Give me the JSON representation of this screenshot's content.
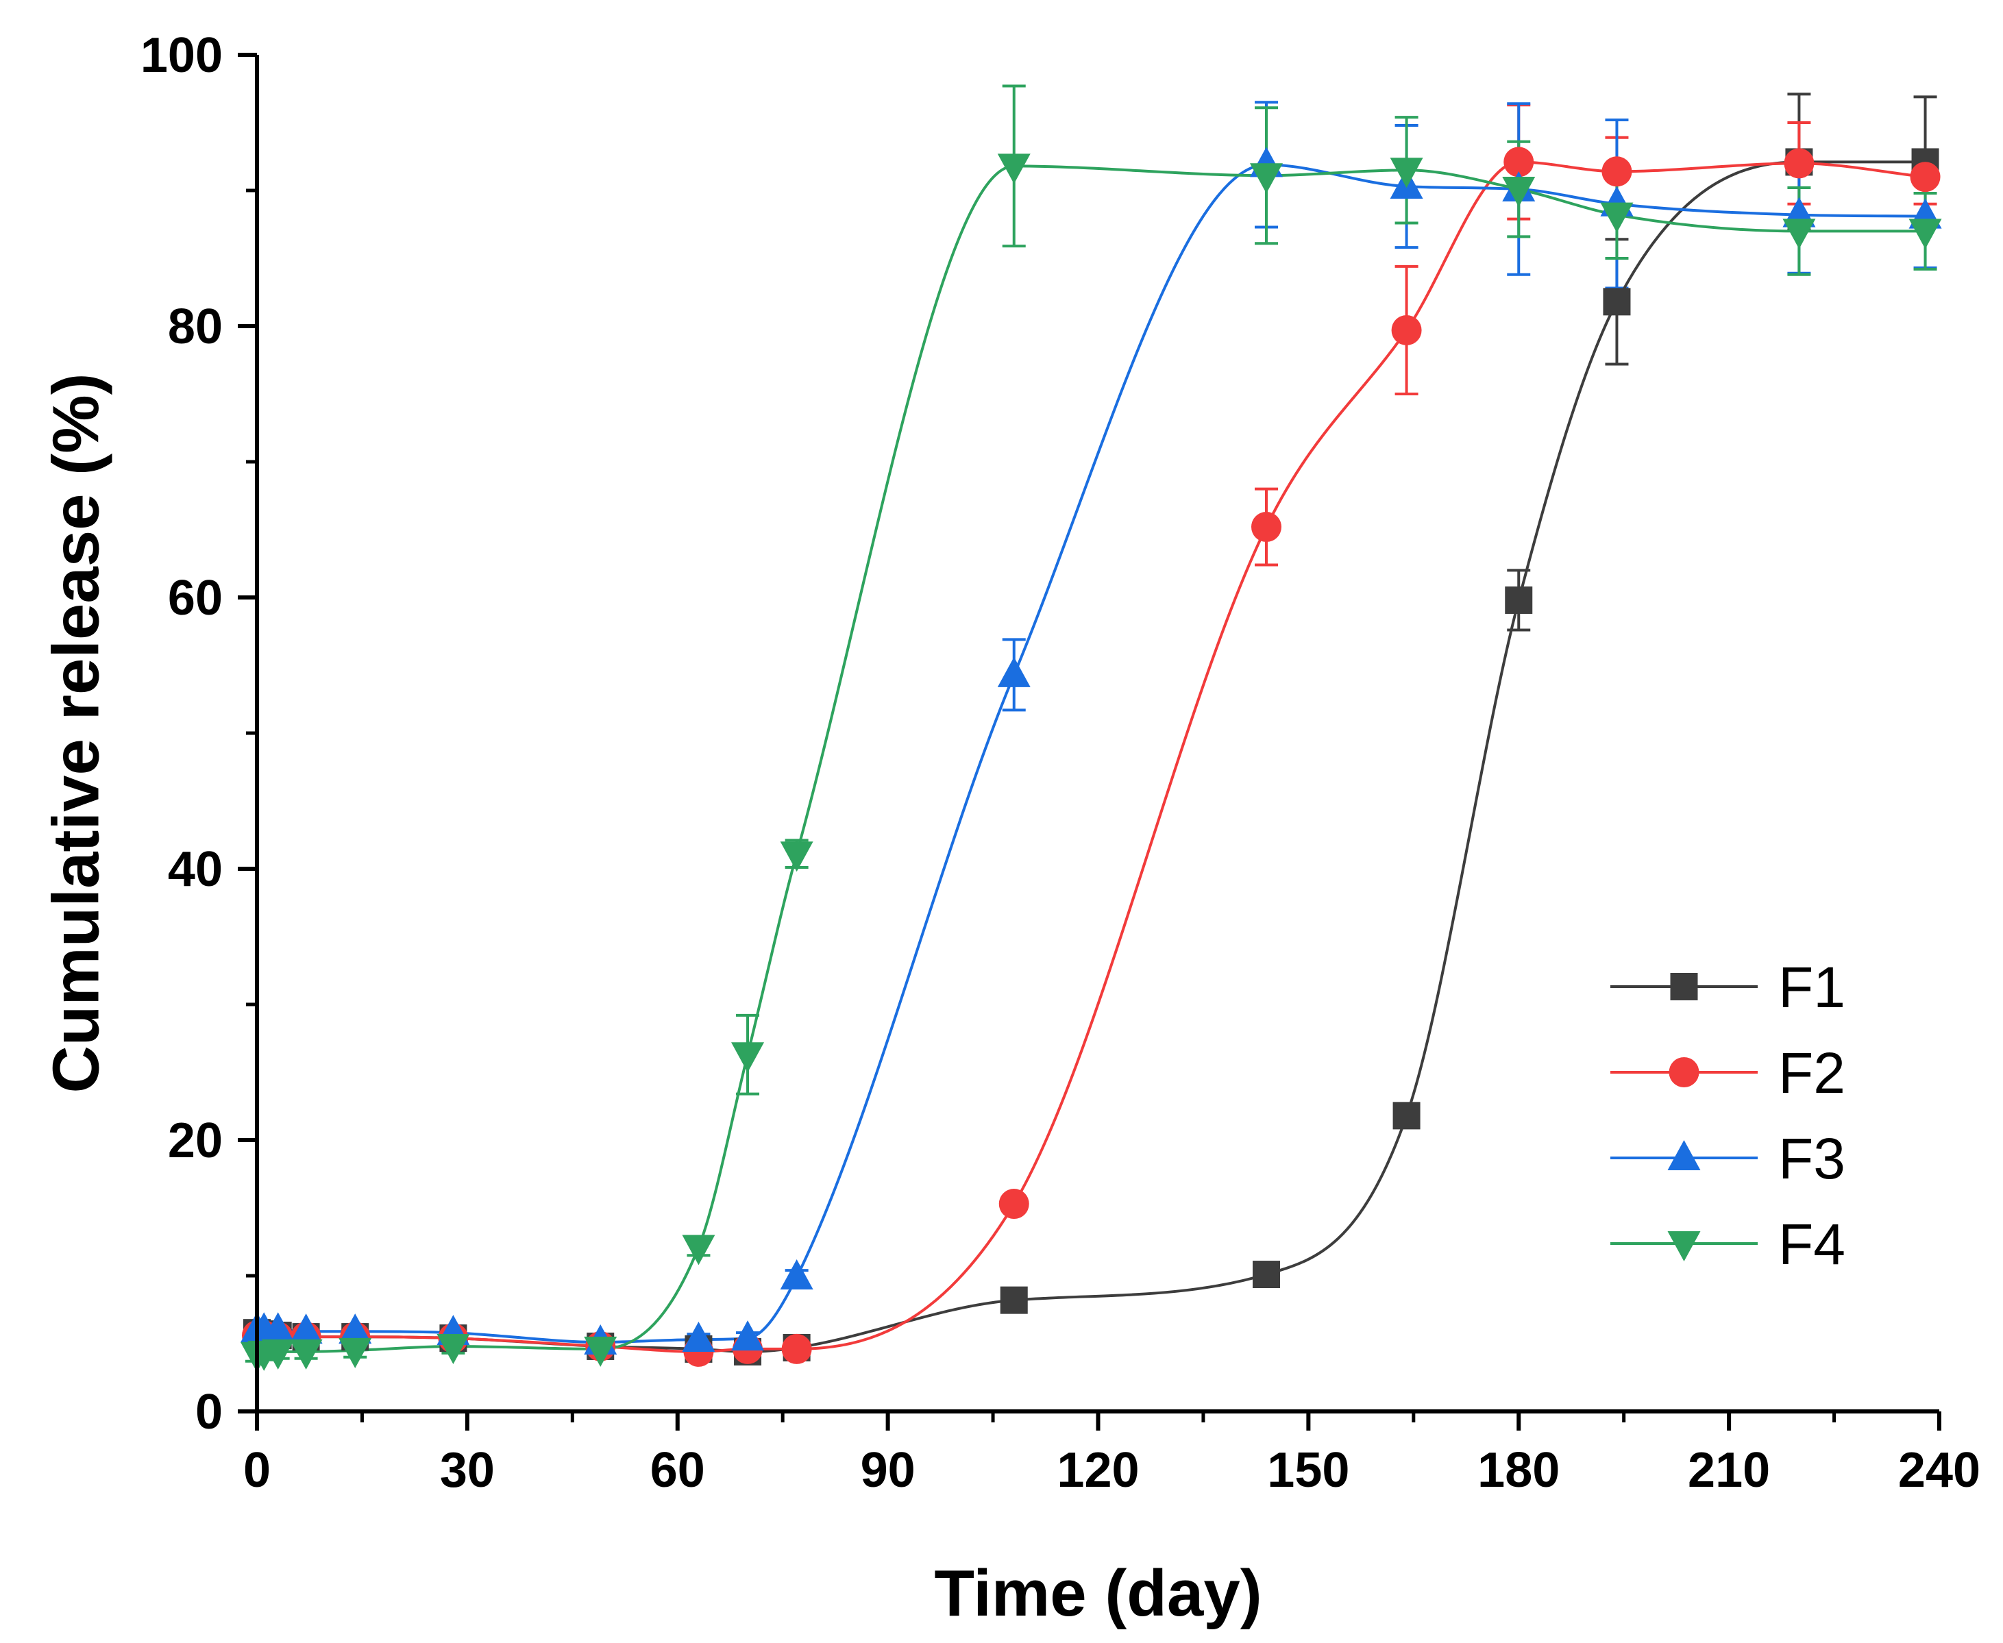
{
  "chart_data": {
    "type": "line",
    "title": "",
    "xlabel": "Time (day)",
    "ylabel": "Cumulative release (%)",
    "xlim": [
      0,
      240
    ],
    "ylim": [
      0,
      100
    ],
    "xticks": [
      0,
      30,
      60,
      90,
      120,
      150,
      180,
      210,
      240
    ],
    "yticks": [
      0,
      20,
      40,
      60,
      80,
      100
    ],
    "grid": false,
    "legend_position": "bottom-right",
    "series": [
      {
        "name": "F1",
        "color": "#3d3d3d",
        "marker": "square",
        "x": [
          0,
          1,
          3,
          7,
          14,
          28,
          49,
          63,
          70,
          77,
          108,
          144,
          164,
          180,
          194,
          220,
          238
        ],
        "y": [
          5.8,
          5.7,
          5.6,
          5.5,
          5.5,
          5.4,
          4.8,
          4.6,
          4.4,
          4.7,
          8.2,
          10.1,
          21.8,
          59.8,
          81.8,
          92.1,
          92.1
        ],
        "err": [
          0.5,
          0.5,
          0.5,
          0.5,
          0.5,
          0.5,
          0.4,
          0.4,
          0.4,
          0.4,
          0.5,
          0.5,
          0.6,
          2.2,
          4.6,
          5.0,
          4.8
        ]
      },
      {
        "name": "F2",
        "color": "#f23b3b",
        "marker": "circle",
        "x": [
          0,
          1,
          3,
          7,
          14,
          28,
          49,
          63,
          70,
          77,
          108,
          144,
          164,
          180,
          194,
          220,
          238
        ],
        "y": [
          5.6,
          5.6,
          5.5,
          5.5,
          5.5,
          5.4,
          4.8,
          4.4,
          4.6,
          4.6,
          15.3,
          65.2,
          79.7,
          92.1,
          91.4,
          92.0,
          91.0
        ],
        "err": [
          0.5,
          0.5,
          0.5,
          0.5,
          0.5,
          0.5,
          0.4,
          0.4,
          0.4,
          0.4,
          0.5,
          2.8,
          4.7,
          4.2,
          2.5,
          3.0,
          2.0
        ]
      },
      {
        "name": "F3",
        "color": "#1a6ee0",
        "marker": "triangle-up",
        "x": [
          0,
          1,
          3,
          7,
          14,
          28,
          49,
          63,
          70,
          77,
          108,
          144,
          164,
          180,
          194,
          220,
          238
        ],
        "y": [
          6.0,
          6.0,
          6.0,
          5.9,
          5.9,
          5.8,
          5.1,
          5.3,
          5.4,
          9.9,
          54.3,
          91.9,
          90.3,
          90.1,
          89.0,
          88.2,
          88.1
        ],
        "err": [
          0.5,
          0.5,
          0.5,
          0.5,
          0.5,
          0.5,
          0.4,
          0.4,
          0.4,
          0.5,
          2.6,
          4.6,
          4.5,
          6.3,
          6.2,
          4.3,
          3.8
        ]
      },
      {
        "name": "F4",
        "color": "#2ea35e",
        "marker": "triangle-down",
        "x": [
          0,
          1,
          3,
          7,
          14,
          28,
          49,
          63,
          70,
          77,
          108,
          144,
          164,
          180,
          194,
          220,
          238
        ],
        "y": [
          4.2,
          4.3,
          4.4,
          4.4,
          4.5,
          4.8,
          4.6,
          12.1,
          26.3,
          41.1,
          91.8,
          91.1,
          91.5,
          90.1,
          88.2,
          87.0,
          87.0
        ],
        "err": [
          0.5,
          0.5,
          0.5,
          0.5,
          0.5,
          0.5,
          0.4,
          0.6,
          2.9,
          1.0,
          5.9,
          5.0,
          3.9,
          3.5,
          3.2,
          3.2,
          2.8
        ]
      }
    ]
  }
}
